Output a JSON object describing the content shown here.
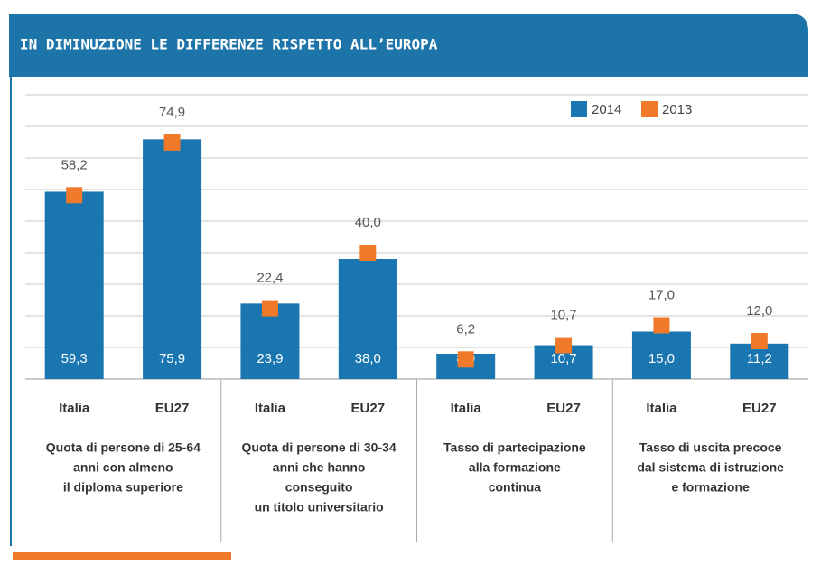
{
  "chart_data": {
    "type": "bar",
    "title": "IN DIMINUZIONE LE DIFFERENZE RISPETTO ALL’EUROPA",
    "categories": [
      "Italia",
      "EU27",
      "Italia",
      "EU27",
      "Italia",
      "EU27",
      "Italia",
      "EU27"
    ],
    "groups": [
      [
        "Quota di persone di 25-64",
        "anni con almeno",
        "il diploma superiore"
      ],
      [
        "Quota di persone di 30-34",
        "anni che hanno",
        "conseguito",
        "un titolo universitario"
      ],
      [
        "Tasso di partecipazione",
        "alla formazione",
        "continua"
      ],
      [
        "Tasso di uscita precoce",
        "dal sistema di istruzione",
        "e formazione"
      ]
    ],
    "series": [
      {
        "name": "2014",
        "color": "#1a76b0",
        "values": [
          59.3,
          75.9,
          23.9,
          38.0,
          8.0,
          10.7,
          15.0,
          11.2
        ],
        "value_labels": [
          "59,3",
          "75,9",
          "23,9",
          "38,0",
          "8,0",
          "10,7",
          "15,0",
          "11,2"
        ]
      },
      {
        "name": "2013",
        "color": "#f07a2a",
        "values": [
          58.2,
          74.9,
          22.4,
          40.0,
          6.2,
          10.7,
          17.0,
          12.0
        ],
        "value_labels": [
          "58,2",
          "74,9",
          "22,4",
          "40,0",
          "6,2",
          "10,7",
          "17,0",
          "12,0"
        ]
      }
    ],
    "ylim": [
      0,
      90
    ],
    "yticks": [
      0,
      10,
      20,
      30,
      40,
      50,
      60,
      70,
      80,
      90
    ],
    "grid": true,
    "legend": "top-right"
  }
}
